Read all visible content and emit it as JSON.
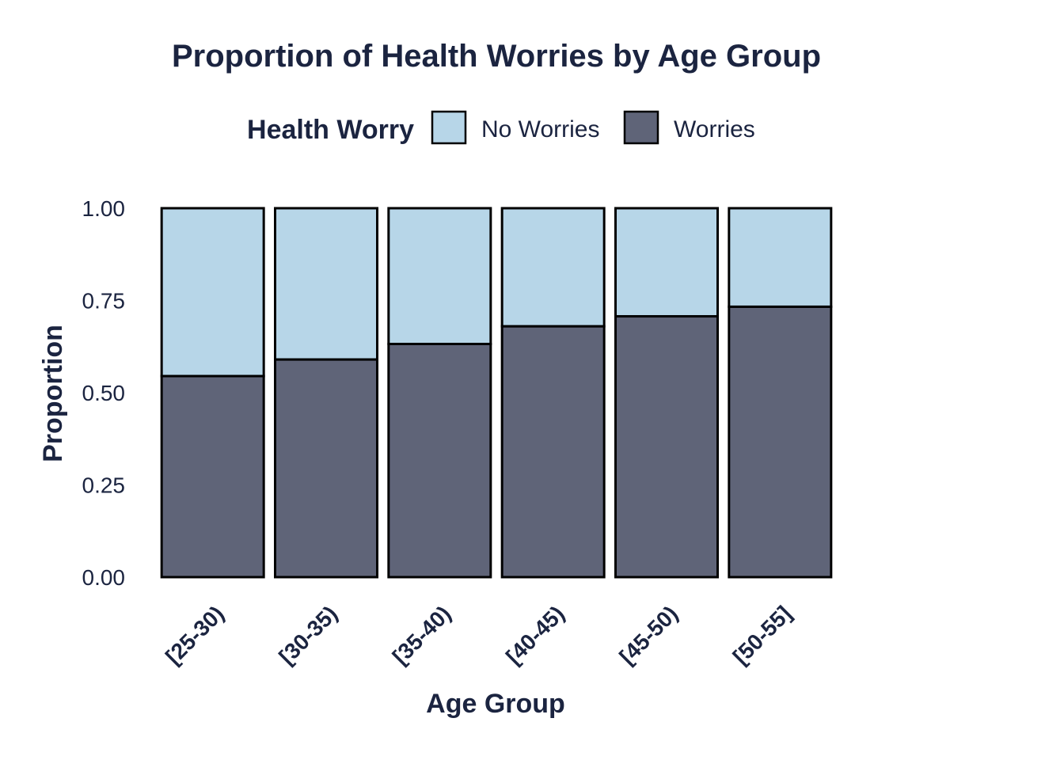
{
  "chart_data": {
    "type": "bar",
    "stacked": true,
    "title": "Proportion of Health Worries by Age Group",
    "xlabel": "Age Group",
    "ylabel": "Proportion",
    "ylim": [
      0,
      1
    ],
    "yticks": [
      "0.00",
      "0.25",
      "0.50",
      "0.75",
      "1.00"
    ],
    "ytick_values": [
      0,
      0.25,
      0.5,
      0.75,
      1.0
    ],
    "categories": [
      "[25-30)",
      "[30-35)",
      "[35-40)",
      "[40-45)",
      "[45-50)",
      "[50-55]"
    ],
    "legend": {
      "title": "Health Worry",
      "position": "top"
    },
    "series": [
      {
        "name": "Worries",
        "color": "#5f6478",
        "values": [
          0.545,
          0.59,
          0.632,
          0.68,
          0.707,
          0.733
        ]
      },
      {
        "name": "No Worries",
        "color": "#b7d6e8",
        "values": [
          0.455,
          0.41,
          0.368,
          0.32,
          0.293,
          0.267
        ]
      }
    ],
    "legend_order": [
      "No Worries",
      "Worries"
    ],
    "grid": false
  }
}
